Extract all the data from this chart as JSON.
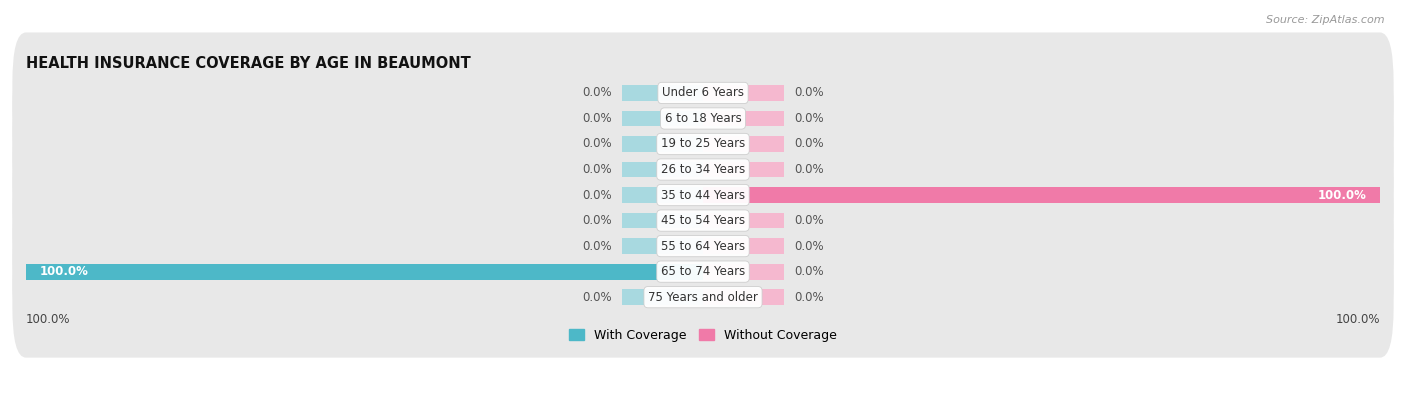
{
  "title": "HEALTH INSURANCE COVERAGE BY AGE IN BEAUMONT",
  "source": "Source: ZipAtlas.com",
  "categories": [
    "Under 6 Years",
    "6 to 18 Years",
    "19 to 25 Years",
    "26 to 34 Years",
    "35 to 44 Years",
    "45 to 54 Years",
    "55 to 64 Years",
    "65 to 74 Years",
    "75 Years and older"
  ],
  "with_coverage": [
    0.0,
    0.0,
    0.0,
    0.0,
    0.0,
    0.0,
    0.0,
    100.0,
    0.0
  ],
  "without_coverage": [
    0.0,
    0.0,
    0.0,
    0.0,
    100.0,
    0.0,
    0.0,
    0.0,
    0.0
  ],
  "color_with": "#4db8c8",
  "color_without": "#f07aa8",
  "color_with_light": "#a8d9e0",
  "color_without_light": "#f5b8cf",
  "bg_row_color": "#e8e8e8",
  "bar_height": 0.62,
  "xlim_left": -100,
  "xlim_right": 100,
  "label_fontsize": 8.5,
  "title_fontsize": 10.5,
  "source_fontsize": 8,
  "legend_fontsize": 9,
  "stub_size": 12
}
